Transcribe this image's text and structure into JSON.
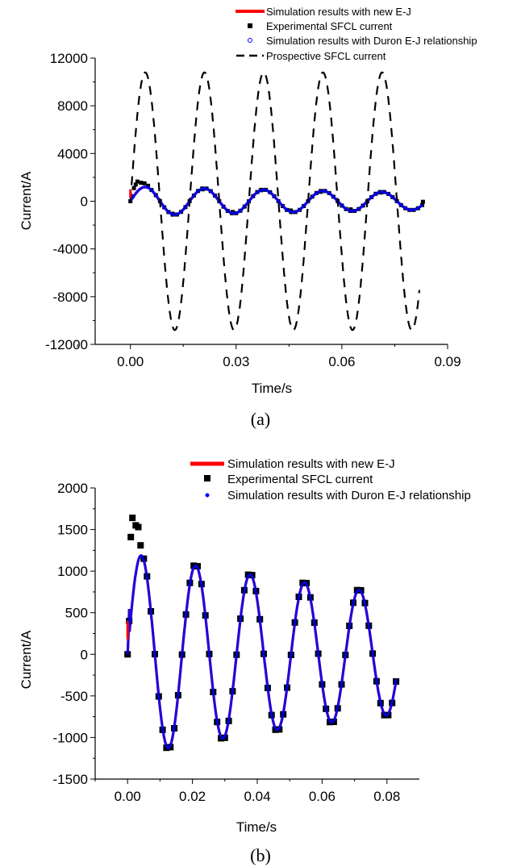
{
  "chart_data": [
    {
      "type": "line",
      "panel_label": "(a)",
      "xlabel": "Time/s",
      "ylabel": "Current/A",
      "xlim": [
        -0.01,
        0.09
      ],
      "ylim": [
        -12000,
        12000
      ],
      "x_ticks": [
        0.0,
        0.03,
        0.06,
        0.09
      ],
      "x_tick_labels": [
        "0.00",
        "0.03",
        "0.06",
        "0.09"
      ],
      "y_ticks": [
        -12000,
        -8000,
        -4000,
        0,
        4000,
        8000,
        12000
      ],
      "y_tick_labels": [
        "-12000",
        "-8000",
        "-4000",
        "0",
        "4000",
        "8000",
        "12000"
      ],
      "legend_position": "top-right",
      "legend": [
        {
          "label": "Simulation results with new E-J",
          "color": "#ff0000",
          "marker": "line"
        },
        {
          "label": "Experimental SFCL current",
          "color": "#000000",
          "marker": "square"
        },
        {
          "label": "Simulation results with Duron E-J relationship",
          "color": "#0000ff",
          "marker": "circle"
        },
        {
          "label": "Prospective SFCL current",
          "color": "#000000",
          "marker": "dash"
        }
      ],
      "series": [
        {
          "name": "Simulation results with new E-J",
          "color": "#ff0000",
          "model": {
            "t0": 0.0,
            "t1": 0.083,
            "freq_hz": 59.5,
            "amp_start": 1220,
            "amp_end": 720,
            "onset": 0.0006
          }
        },
        {
          "name": "Experimental SFCL current",
          "color": "#000000",
          "points": [
            [
              0.0,
              0
            ],
            [
              0.0005,
              400
            ],
            [
              0.001,
              1100
            ],
            [
              0.0015,
              1400
            ],
            [
              0.002,
              1650
            ],
            [
              0.003,
              1550
            ],
            [
              0.004,
              1500
            ],
            [
              0.005,
              1300
            ],
            [
              0.012,
              -1050
            ],
            [
              0.0205,
              1000
            ],
            [
              0.029,
              -900
            ],
            [
              0.037,
              920
            ],
            [
              0.0455,
              -780
            ],
            [
              0.054,
              790
            ],
            [
              0.0625,
              -680
            ],
            [
              0.071,
              730
            ],
            [
              0.083,
              -50
            ]
          ]
        },
        {
          "name": "Simulation results with Duron E-J relationship",
          "color": "#0000ff",
          "model": {
            "t0": 0.0,
            "t1": 0.083,
            "freq_hz": 59.5,
            "amp_start": 1220,
            "amp_end": 720,
            "onset": 0.0006
          }
        },
        {
          "name": "Prospective SFCL current",
          "color": "#000000",
          "model": {
            "t0": 0.0,
            "t1": 0.082,
            "freq_hz": 59.5,
            "amp": 10800
          }
        }
      ]
    },
    {
      "type": "line",
      "panel_label": "(b)",
      "xlabel": "Time/s",
      "ylabel": "Current/A",
      "xlim": [
        -0.01,
        0.09
      ],
      "ylim": [
        -1500,
        2000
      ],
      "x_ticks": [
        0.0,
        0.02,
        0.04,
        0.06,
        0.08
      ],
      "x_tick_labels": [
        "0.00",
        "0.02",
        "0.04",
        "0.06",
        "0.08"
      ],
      "y_ticks": [
        -1500,
        -1000,
        -500,
        0,
        500,
        1000,
        1500,
        2000
      ],
      "y_tick_labels": [
        "-1500",
        "-1000",
        "-500",
        "0",
        "500",
        "1000",
        "1500",
        "2000"
      ],
      "legend_position": "top-right",
      "legend": [
        {
          "label": "Simulation results with new E-J",
          "color": "#ff0000",
          "marker": "line"
        },
        {
          "label": "Experimental SFCL current",
          "color": "#000000",
          "marker": "square"
        },
        {
          "label": "Simulation results with Duron E-J relationship",
          "color": "#0000ff",
          "marker": "dot"
        }
      ],
      "series": [
        {
          "name": "Simulation results with new E-J",
          "color": "#ff0000",
          "model": {
            "t0": 0.0,
            "t1": 0.083,
            "freq_hz": 59.5,
            "amp_start": 1220,
            "amp_end": 720,
            "onset": 0.0006
          }
        },
        {
          "name": "Experimental SFCL current",
          "color": "#000000",
          "points": [
            [
              0.0,
              0
            ],
            [
              0.0005,
              400
            ],
            [
              0.001,
              1410
            ],
            [
              0.0015,
              1640
            ],
            [
              0.0025,
              1550
            ],
            [
              0.0033,
              1530
            ],
            [
              0.004,
              1310
            ],
            [
              0.005,
              1150
            ]
          ]
        },
        {
          "name": "Simulation results with Duron E-J relationship",
          "color": "#0000ff",
          "model": {
            "t0": 0.0,
            "t1": 0.083,
            "freq_hz": 59.5,
            "amp_start": 1220,
            "amp_end": 720,
            "onset": 0.0006
          }
        }
      ]
    }
  ]
}
